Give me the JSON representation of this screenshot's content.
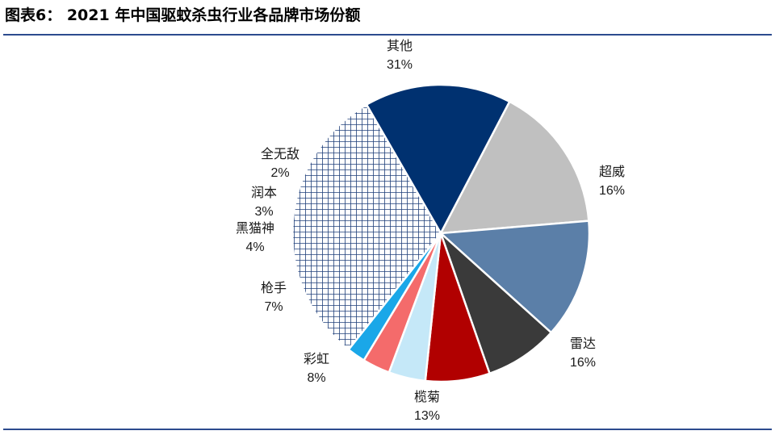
{
  "title": "图表6：  2021 年中国驱蚊杀虫行业各品牌市场份额",
  "chart_data": {
    "type": "pie",
    "unit": "%",
    "start_angle_deg": 330,
    "direction": "clockwise",
    "slices": [
      {
        "label": "超威",
        "value": 16,
        "display": "16%",
        "color": "#003170",
        "pattern": null,
        "label_side": "right"
      },
      {
        "label": "雷达",
        "value": 16,
        "display": "16%",
        "color": "#c0c0c0",
        "pattern": null,
        "label_side": "right"
      },
      {
        "label": "榄菊",
        "value": 13,
        "display": "13%",
        "color": "#5b7fa8",
        "pattern": null,
        "label_side": "center"
      },
      {
        "label": "彩虹",
        "value": 8,
        "display": "8%",
        "color": "#3a3a3a",
        "pattern": null,
        "label_side": "left"
      },
      {
        "label": "枪手",
        "value": 7,
        "display": "7%",
        "color": "#b10000",
        "pattern": null,
        "label_side": "left"
      },
      {
        "label": "黑猫神",
        "value": 4,
        "display": "4%",
        "color": "#c5e8f8",
        "pattern": null,
        "label_side": "left"
      },
      {
        "label": "润本",
        "value": 3,
        "display": "3%",
        "color": "#f46b6b",
        "pattern": null,
        "label_side": "left"
      },
      {
        "label": "全无敌",
        "value": 2,
        "display": "2%",
        "color": "#1aa7e8",
        "pattern": null,
        "label_side": "left"
      },
      {
        "label": "其他",
        "value": 31,
        "display": "31%",
        "color": "#1f3f7a",
        "pattern": "crosshatch",
        "label_side": "center"
      }
    ]
  }
}
